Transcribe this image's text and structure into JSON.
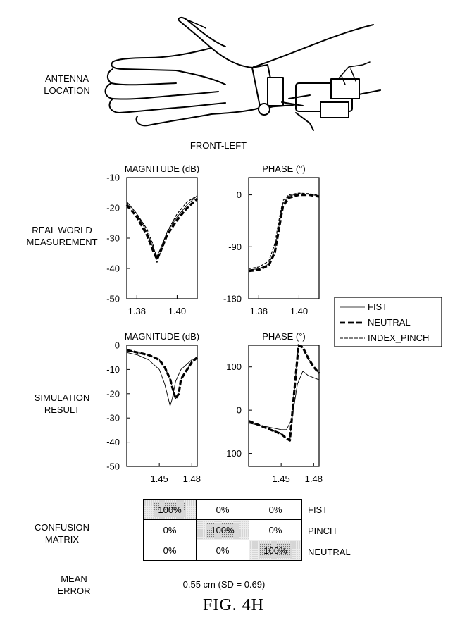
{
  "labels": {
    "antenna_location": [
      "ANTENNA",
      "LOCATION"
    ],
    "front_left": "FRONT-LEFT",
    "real_world": [
      "REAL WORLD",
      "MEASUREMENT"
    ],
    "simulation": [
      "SIMULATION",
      "RESULT"
    ],
    "confusion": [
      "CONFUSION",
      "MATRIX"
    ],
    "mean_error": [
      "MEAN",
      "ERROR"
    ],
    "mean_error_value": "0.55 cm (SD = 0.69)",
    "figure_caption": "FIG. 4H"
  },
  "legend": {
    "entries": [
      {
        "name": "FIST",
        "style": "thin-solid"
      },
      {
        "name": "NEUTRAL",
        "style": "thick-dashed"
      },
      {
        "name": "INDEX_PINCH",
        "style": "thin-dashed"
      }
    ]
  },
  "confusion_matrix": {
    "rows": [
      "FIST",
      "PINCH",
      "NEUTRAL"
    ],
    "cells": [
      [
        "100%",
        "0%",
        "0%"
      ],
      [
        "0%",
        "100%",
        "0%"
      ],
      [
        "0%",
        "0%",
        "100%"
      ]
    ]
  },
  "chart_data": [
    {
      "type": "line",
      "title": "MAGNITUDE (dB)",
      "xlabel": "",
      "ylabel": "",
      "xlim": [
        1.375,
        1.41
      ],
      "ylim": [
        -50,
        -10
      ],
      "xticks": [
        1.38,
        1.4
      ],
      "yticks": [
        -10,
        -20,
        -30,
        -40,
        -50
      ],
      "series": [
        {
          "name": "FIST",
          "x": [
            1.375,
            1.38,
            1.385,
            1.388,
            1.39,
            1.392,
            1.395,
            1.4,
            1.405,
            1.41
          ],
          "y": [
            -18,
            -22,
            -28,
            -33,
            -36,
            -33,
            -28,
            -23,
            -19,
            -16
          ]
        },
        {
          "name": "NEUTRAL",
          "x": [
            1.375,
            1.38,
            1.385,
            1.388,
            1.39,
            1.392,
            1.395,
            1.4,
            1.405,
            1.41
          ],
          "y": [
            -19,
            -23,
            -29,
            -34,
            -37,
            -34,
            -29,
            -24,
            -20,
            -17
          ]
        },
        {
          "name": "INDEX_PINCH",
          "x": [
            1.375,
            1.38,
            1.385,
            1.388,
            1.39,
            1.392,
            1.395,
            1.4,
            1.405,
            1.41
          ],
          "y": [
            -18,
            -22,
            -27,
            -32,
            -38,
            -34,
            -28,
            -22,
            -18,
            -16
          ]
        }
      ]
    },
    {
      "type": "line",
      "title": "PHASE (°)",
      "xlabel": "",
      "ylabel": "",
      "xlim": [
        1.375,
        1.41
      ],
      "ylim": [
        -180,
        30
      ],
      "xticks": [
        1.38,
        1.4
      ],
      "yticks": [
        0,
        -90,
        -180
      ],
      "series": [
        {
          "name": "FIST",
          "x": [
            1.375,
            1.38,
            1.385,
            1.388,
            1.39,
            1.392,
            1.395,
            1.4,
            1.405,
            1.41
          ],
          "y": [
            -130,
            -128,
            -120,
            -95,
            -55,
            -15,
            -2,
            2,
            1,
            -2
          ]
        },
        {
          "name": "NEUTRAL",
          "x": [
            1.375,
            1.38,
            1.385,
            1.388,
            1.39,
            1.392,
            1.395,
            1.4,
            1.405,
            1.41
          ],
          "y": [
            -132,
            -130,
            -122,
            -100,
            -60,
            -20,
            -5,
            0,
            0,
            -3
          ]
        },
        {
          "name": "INDEX_PINCH",
          "x": [
            1.375,
            1.38,
            1.385,
            1.388,
            1.39,
            1.392,
            1.395,
            1.4,
            1.405,
            1.41
          ],
          "y": [
            -128,
            -125,
            -115,
            -85,
            -45,
            -10,
            0,
            3,
            2,
            -1
          ]
        }
      ]
    },
    {
      "type": "line",
      "title": "MAGNITUDE (dB)",
      "xlabel": "",
      "ylabel": "",
      "xlim": [
        1.42,
        1.485
      ],
      "ylim": [
        -50,
        0
      ],
      "xticks": [
        1.45,
        1.48
      ],
      "yticks": [
        0,
        -10,
        -20,
        -30,
        -40,
        -50
      ],
      "series": [
        {
          "name": "FIST",
          "x": [
            1.42,
            1.43,
            1.44,
            1.45,
            1.455,
            1.46,
            1.462,
            1.465,
            1.47,
            1.48,
            1.485
          ],
          "y": [
            -3,
            -4,
            -6,
            -10,
            -16,
            -25,
            -22,
            -15,
            -10,
            -6,
            -5
          ]
        },
        {
          "name": "NEUTRAL",
          "x": [
            1.42,
            1.43,
            1.44,
            1.45,
            1.455,
            1.46,
            1.465,
            1.468,
            1.47,
            1.48,
            1.485
          ],
          "y": [
            -2,
            -3,
            -4,
            -6,
            -9,
            -14,
            -22,
            -20,
            -14,
            -7,
            -5
          ]
        },
        {
          "name": "INDEX_PINCH",
          "x": [
            1.42,
            1.43,
            1.44,
            1.45,
            1.455,
            1.46,
            1.465,
            1.468,
            1.47,
            1.48,
            1.485
          ],
          "y": [
            -2,
            -3,
            -4,
            -6,
            -9,
            -14,
            -22,
            -20,
            -14,
            -7,
            -5
          ]
        }
      ]
    },
    {
      "type": "line",
      "title": "PHASE (°)",
      "xlabel": "",
      "ylabel": "",
      "xlim": [
        1.42,
        1.485
      ],
      "ylim": [
        -130,
        150
      ],
      "xticks": [
        1.45,
        1.48
      ],
      "yticks": [
        100,
        0,
        -100
      ],
      "series": [
        {
          "name": "FIST",
          "x": [
            1.42,
            1.43,
            1.44,
            1.45,
            1.455,
            1.46,
            1.465,
            1.47,
            1.475,
            1.48,
            1.485
          ],
          "y": [
            -30,
            -35,
            -40,
            -45,
            -45,
            -20,
            60,
            90,
            80,
            75,
            70
          ]
        },
        {
          "name": "NEUTRAL",
          "x": [
            1.42,
            1.43,
            1.44,
            1.45,
            1.455,
            1.458,
            1.462,
            1.466,
            1.47,
            1.475,
            1.48,
            1.485
          ],
          "y": [
            -25,
            -35,
            -45,
            -55,
            -65,
            -70,
            40,
            165,
            145,
            120,
            100,
            85
          ]
        },
        {
          "name": "INDEX_PINCH",
          "x": [
            1.42,
            1.43,
            1.44,
            1.45,
            1.455,
            1.458,
            1.462,
            1.466,
            1.47,
            1.475,
            1.48,
            1.485
          ],
          "y": [
            -25,
            -35,
            -45,
            -55,
            -65,
            -70,
            40,
            165,
            145,
            120,
            100,
            85
          ]
        }
      ]
    }
  ]
}
